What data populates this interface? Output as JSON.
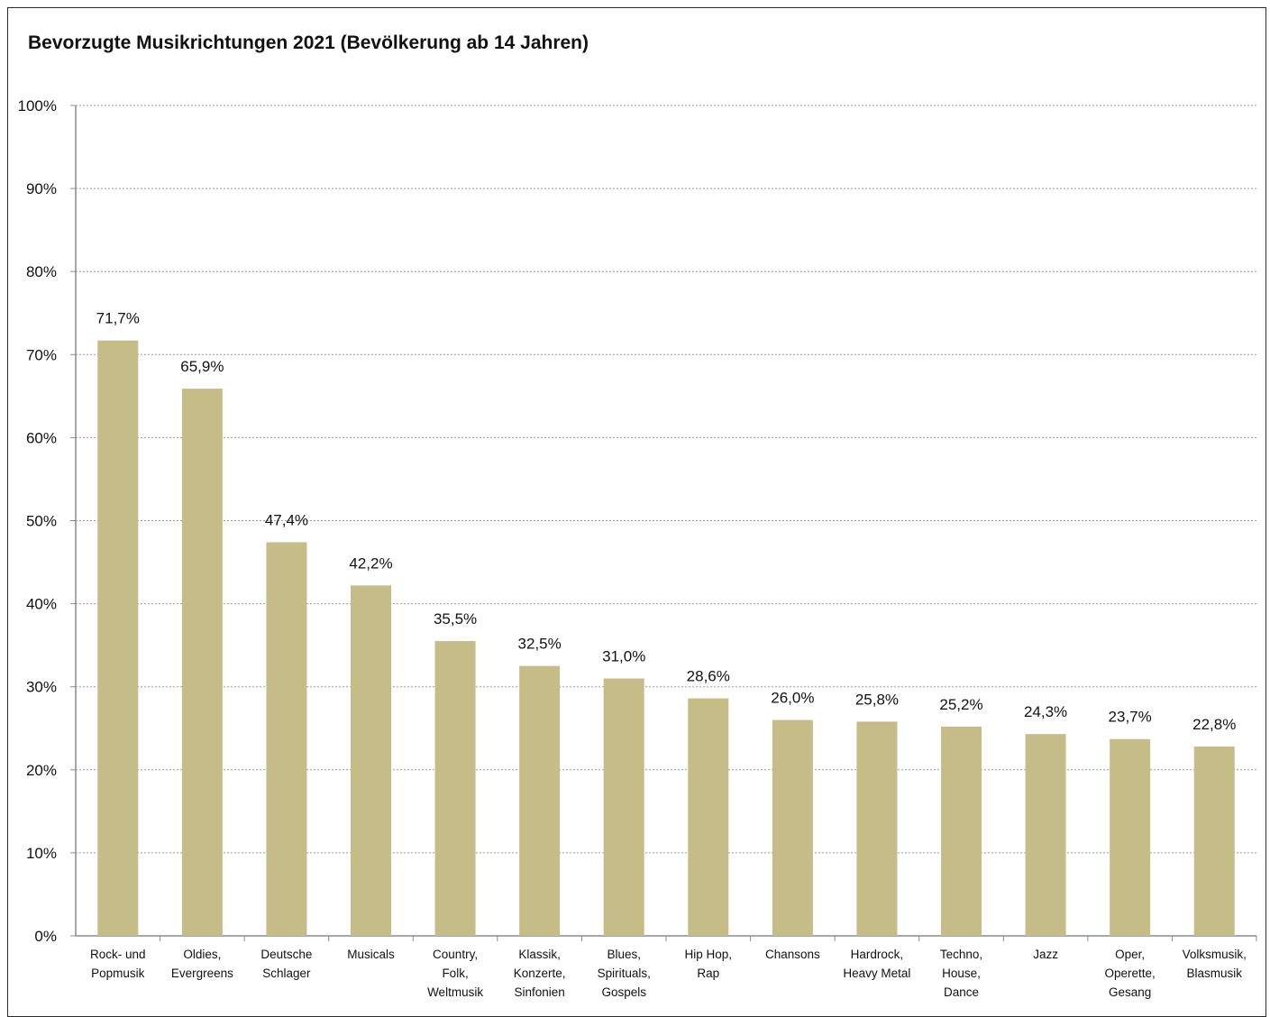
{
  "chart_data": {
    "type": "bar",
    "title": "Bevorzugte Musikrichtungen 2021 (Bevölkerung ab 14 Jahren)",
    "xlabel": "",
    "ylabel": "",
    "ylim": [
      0,
      100
    ],
    "yticks": [
      "0%",
      "10%",
      "20%",
      "30%",
      "40%",
      "50%",
      "60%",
      "70%",
      "80%",
      "90%",
      "100%"
    ],
    "grid": true,
    "categories": [
      [
        "Rock- und",
        "Popmusik"
      ],
      [
        "Oldies,",
        "Evergreens"
      ],
      [
        "Deutsche",
        "Schlager"
      ],
      [
        "Musicals"
      ],
      [
        "Country,",
        "Folk,",
        "Weltmusik"
      ],
      [
        "Klassik,",
        "Konzerte,",
        "Sinfonien"
      ],
      [
        "Blues,",
        "Spirituals,",
        "Gospels"
      ],
      [
        "Hip Hop,",
        "Rap"
      ],
      [
        "Chansons"
      ],
      [
        "Hardrock,",
        "Heavy Metal"
      ],
      [
        "Techno,",
        "House,",
        "Dance"
      ],
      [
        "Jazz"
      ],
      [
        "Oper,",
        "Operette,",
        "Gesang"
      ],
      [
        "Volksmusik,",
        "Blasmusik"
      ]
    ],
    "values": [
      71.7,
      65.9,
      47.4,
      42.2,
      35.5,
      32.5,
      31.0,
      28.6,
      26.0,
      25.8,
      25.2,
      24.3,
      23.7,
      22.8
    ],
    "value_labels": [
      "71,7%",
      "65,9%",
      "47,4%",
      "42,2%",
      "35,5%",
      "32,5%",
      "31,0%",
      "28,6%",
      "26,0%",
      "25,8%",
      "25,2%",
      "24,3%",
      "23,7%",
      "22,8%"
    ],
    "colors": {
      "bar": "#c5bc88",
      "grid": "#9a9a9a",
      "axis": "#8c8c8c"
    }
  }
}
